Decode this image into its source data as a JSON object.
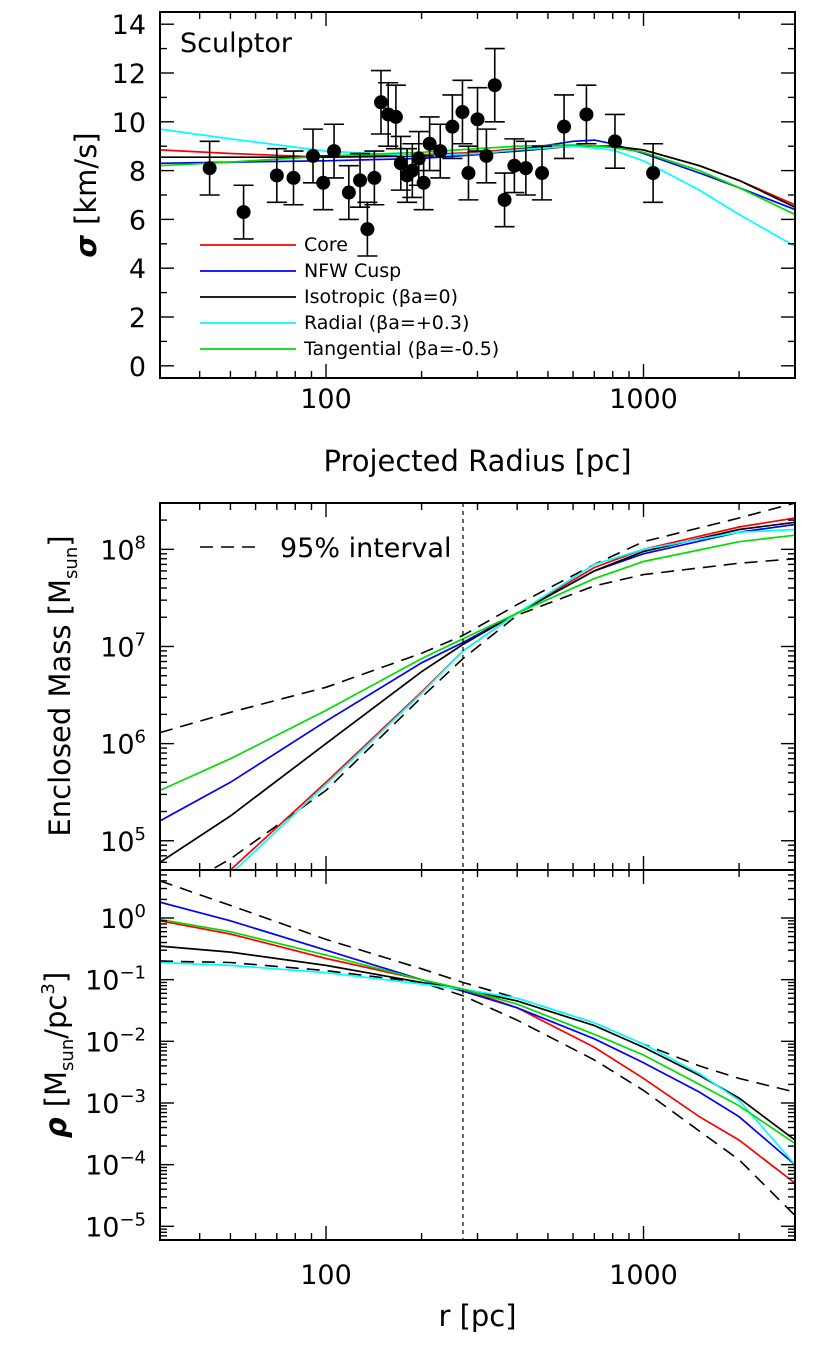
{
  "figure": {
    "panel_sigma": {
      "annotation": "Sculptor",
      "ylabel_symbol": "σ",
      "ylabel_unit": "[km/s]",
      "xlabel": "Projected Radius [pc]",
      "yticks": [
        "0",
        "2",
        "4",
        "6",
        "8",
        "10",
        "12",
        "14"
      ],
      "xticks": [
        "100",
        "1000"
      ]
    },
    "panel_mass": {
      "ylabel": "Enclosed Mass [Msun]",
      "yticks": [
        "10^5",
        "10^6",
        "10^7",
        "10^8"
      ],
      "band_label": "95% interval"
    },
    "panel_rho": {
      "ylabel": "ρ [Msun/pc^3]",
      "yticks": [
        "10^0",
        "10^-1",
        "10^-2",
        "10^-3",
        "10^-4",
        "10^-5"
      ],
      "xlabel": "r [pc]",
      "xticks": [
        "100",
        "1000"
      ]
    },
    "legend": [
      {
        "key": "core",
        "label": "Core",
        "color": "#ff0000"
      },
      {
        "key": "nfw",
        "label": "NFW Cusp",
        "color": "#0000ff"
      },
      {
        "key": "iso",
        "label": "Isotropic (βa=0)",
        "color": "#000000"
      },
      {
        "key": "rad",
        "label": "Radial (βa=+0.3)",
        "color": "#00ffff"
      },
      {
        "key": "tan",
        "label": "Tangential (βa=-0.5)",
        "color": "#00dd00"
      }
    ]
  },
  "chart_data": [
    {
      "type": "scatter",
      "title": "Sculptor",
      "xlabel": "Projected Radius [pc]",
      "ylabel": "σ [km/s]",
      "xscale": "log",
      "xlim": [
        30,
        3000
      ],
      "ylim": [
        -0.5,
        14.5
      ],
      "points": [
        {
          "x": 43,
          "y": 8.1,
          "err": 1.1
        },
        {
          "x": 55,
          "y": 6.3,
          "err": 1.1
        },
        {
          "x": 70,
          "y": 7.8,
          "err": 1.1
        },
        {
          "x": 79,
          "y": 7.7,
          "err": 1.1
        },
        {
          "x": 91,
          "y": 8.6,
          "err": 1.1
        },
        {
          "x": 98,
          "y": 7.5,
          "err": 1.1
        },
        {
          "x": 106,
          "y": 8.8,
          "err": 1.1
        },
        {
          "x": 118,
          "y": 7.1,
          "err": 1.1
        },
        {
          "x": 128,
          "y": 7.6,
          "err": 1.1
        },
        {
          "x": 135,
          "y": 5.6,
          "err": 1.1
        },
        {
          "x": 142,
          "y": 7.7,
          "err": 1.1
        },
        {
          "x": 149,
          "y": 10.8,
          "err": 1.3
        },
        {
          "x": 157,
          "y": 10.3,
          "err": 1.3
        },
        {
          "x": 166,
          "y": 10.2,
          "err": 1.3
        },
        {
          "x": 172,
          "y": 8.3,
          "err": 1.1
        },
        {
          "x": 180,
          "y": 7.8,
          "err": 1.1
        },
        {
          "x": 187,
          "y": 8.0,
          "err": 1.1
        },
        {
          "x": 196,
          "y": 8.5,
          "err": 1.1
        },
        {
          "x": 203,
          "y": 7.5,
          "err": 1.1
        },
        {
          "x": 212,
          "y": 9.1,
          "err": 1.1
        },
        {
          "x": 229,
          "y": 8.8,
          "err": 1.1
        },
        {
          "x": 250,
          "y": 9.8,
          "err": 1.3
        },
        {
          "x": 269,
          "y": 10.4,
          "err": 1.3
        },
        {
          "x": 281,
          "y": 7.9,
          "err": 1.1
        },
        {
          "x": 300,
          "y": 10.1,
          "err": 1.3
        },
        {
          "x": 320,
          "y": 8.6,
          "err": 1.1
        },
        {
          "x": 340,
          "y": 11.5,
          "err": 1.5
        },
        {
          "x": 365,
          "y": 6.8,
          "err": 1.1
        },
        {
          "x": 392,
          "y": 8.2,
          "err": 1.1
        },
        {
          "x": 426,
          "y": 8.1,
          "err": 1.1
        },
        {
          "x": 479,
          "y": 7.9,
          "err": 1.1
        },
        {
          "x": 562,
          "y": 9.8,
          "err": 1.3
        },
        {
          "x": 661,
          "y": 10.3,
          "err": 1.2
        },
        {
          "x": 813,
          "y": 9.2,
          "err": 1.1
        },
        {
          "x": 1072,
          "y": 7.9,
          "err": 1.2
        }
      ],
      "series": [
        {
          "name": "Core",
          "color": "#ff0000",
          "x": [
            30,
            50,
            100,
            200,
            300,
            400,
            600,
            800,
            1000,
            1500,
            2000,
            3000
          ],
          "y": [
            8.85,
            8.7,
            8.55,
            8.65,
            8.75,
            8.9,
            9.0,
            9.0,
            8.85,
            8.2,
            7.6,
            6.6
          ]
        },
        {
          "name": "NFW Cusp",
          "color": "#0000ff",
          "x": [
            30,
            50,
            100,
            200,
            300,
            400,
            600,
            700,
            800,
            1000,
            1500,
            2000,
            3000
          ],
          "y": [
            8.3,
            8.35,
            8.4,
            8.5,
            8.65,
            8.85,
            9.2,
            9.25,
            9.1,
            8.7,
            7.9,
            7.3,
            6.4
          ]
        },
        {
          "name": "Isotropic (βa=0)",
          "color": "#000000",
          "x": [
            30,
            50,
            100,
            200,
            300,
            400,
            600,
            800,
            1000,
            1500,
            2000,
            3000
          ],
          "y": [
            8.55,
            8.55,
            8.55,
            8.6,
            8.7,
            8.8,
            9.0,
            9.0,
            8.85,
            8.2,
            7.6,
            6.5
          ]
        },
        {
          "name": "Radial (βa=+0.3)",
          "color": "#00ffff",
          "x": [
            30,
            50,
            100,
            200,
            300,
            400,
            600,
            800,
            1000,
            1500,
            2000,
            3000
          ],
          "y": [
            9.7,
            9.3,
            8.8,
            8.6,
            8.7,
            8.85,
            9.0,
            8.85,
            8.4,
            7.2,
            6.2,
            4.9
          ]
        },
        {
          "name": "Tangential (βa=-0.5)",
          "color": "#00dd00",
          "x": [
            30,
            50,
            100,
            200,
            300,
            400,
            600,
            800,
            1000,
            1500,
            2000,
            3000
          ],
          "y": [
            8.2,
            8.35,
            8.6,
            8.75,
            8.9,
            9.0,
            9.05,
            8.95,
            8.75,
            8.0,
            7.3,
            6.2
          ]
        }
      ]
    },
    {
      "type": "line",
      "ylabel": "Enclosed Mass [Msun]",
      "xscale": "log",
      "yscale": "log",
      "xlim": [
        30,
        3000
      ],
      "ylim": [
        50000,
        300000000
      ],
      "vline": 270,
      "band_label": "95% interval",
      "band": {
        "x": [
          30,
          50,
          100,
          200,
          270,
          400,
          700,
          1000,
          2000,
          3000
        ],
        "lower": [
          25000,
          65000,
          330000,
          3000000,
          7500000,
          21000000,
          42000000,
          55000000,
          72000000,
          80000000
        ],
        "upper": [
          1300000,
          2100000,
          3800000,
          8500000,
          13000000,
          27000000,
          70000000,
          120000000,
          210000000,
          300000000
        ]
      },
      "series": [
        {
          "name": "Core",
          "color": "#ff0000",
          "x": [
            30,
            50,
            100,
            200,
            270,
            400,
            700,
            1000,
            2000,
            3000
          ],
          "y": [
            12000,
            50000,
            400000,
            3400000,
            9000000,
            22000000,
            65000000,
            100000000,
            170000000,
            210000000
          ]
        },
        {
          "name": "NFW Cusp",
          "color": "#0000ff",
          "x": [
            30,
            50,
            100,
            200,
            270,
            400,
            700,
            1000,
            2000,
            3000
          ],
          "y": [
            160000,
            400000,
            1700000,
            6800000,
            11000000,
            22000000,
            60000000,
            90000000,
            150000000,
            180000000
          ]
        },
        {
          "name": "Isotropic (βa=0)",
          "color": "#000000",
          "x": [
            30,
            50,
            100,
            200,
            270,
            400,
            700,
            1000,
            2000,
            3000
          ],
          "y": [
            60000,
            180000,
            1000000,
            5500000,
            10500000,
            22000000,
            60000000,
            95000000,
            160000000,
            190000000
          ]
        },
        {
          "name": "Radial (βa=+0.3)",
          "color": "#00ffff",
          "x": [
            30,
            50,
            100,
            200,
            270,
            400,
            700,
            1000,
            2000,
            3000
          ],
          "y": [
            10000,
            45000,
            380000,
            3300000,
            9000000,
            22000000,
            70000000,
            100000000,
            150000000,
            160000000
          ]
        },
        {
          "name": "Tangential (βa=-0.5)",
          "color": "#00dd00",
          "x": [
            30,
            50,
            100,
            200,
            270,
            400,
            700,
            1000,
            2000,
            3000
          ],
          "y": [
            330000,
            700000,
            2200000,
            7500000,
            12000000,
            22000000,
            50000000,
            75000000,
            120000000,
            140000000
          ]
        }
      ]
    },
    {
      "type": "line",
      "xlabel": "r [pc]",
      "ylabel": "ρ [Msun/pc^3]",
      "xscale": "log",
      "yscale": "log",
      "xlim": [
        30,
        3000
      ],
      "ylim": [
        6e-06,
        6
      ],
      "vline": 270,
      "band": {
        "x": [
          30,
          50,
          100,
          200,
          270,
          400,
          700,
          1000,
          1500,
          2000,
          3000
        ],
        "lower": [
          0.2,
          0.19,
          0.14,
          0.09,
          0.055,
          0.022,
          0.005,
          0.0016,
          0.00035,
          0.00012,
          1.5e-05
        ],
        "upper": [
          4.0,
          1.6,
          0.45,
          0.15,
          0.09,
          0.05,
          0.02,
          0.009,
          0.004,
          0.0025,
          0.0015
        ]
      },
      "series": [
        {
          "name": "Core",
          "color": "#ff0000",
          "x": [
            30,
            50,
            100,
            200,
            270,
            400,
            700,
            1000,
            1500,
            2000,
            3000
          ],
          "y": [
            0.9,
            0.55,
            0.22,
            0.1,
            0.07,
            0.035,
            0.008,
            0.0025,
            0.0006,
            0.00025,
            5e-05
          ]
        },
        {
          "name": "NFW Cusp",
          "color": "#0000ff",
          "x": [
            30,
            50,
            100,
            200,
            270,
            400,
            700,
            1000,
            1500,
            2000,
            3000
          ],
          "y": [
            1.8,
            0.9,
            0.3,
            0.1,
            0.065,
            0.035,
            0.011,
            0.0045,
            0.0015,
            0.0006,
            0.0001
          ]
        },
        {
          "name": "Isotropic (βa=0)",
          "color": "#000000",
          "x": [
            30,
            50,
            100,
            200,
            270,
            400,
            700,
            1000,
            1500,
            2000,
            3000
          ],
          "y": [
            0.35,
            0.28,
            0.17,
            0.09,
            0.07,
            0.045,
            0.018,
            0.008,
            0.0028,
            0.0012,
            0.00025
          ]
        },
        {
          "name": "Radial (βa=+0.3)",
          "color": "#00ffff",
          "x": [
            30,
            50,
            100,
            200,
            270,
            400,
            700,
            1000,
            1500,
            2000,
            3000
          ],
          "y": [
            0.19,
            0.17,
            0.13,
            0.085,
            0.07,
            0.05,
            0.02,
            0.009,
            0.003,
            0.0011,
            0.0001
          ]
        },
        {
          "name": "Tangential (βa=-0.5)",
          "color": "#00dd00",
          "x": [
            30,
            50,
            100,
            200,
            270,
            400,
            700,
            1000,
            1500,
            2000,
            3000
          ],
          "y": [
            0.95,
            0.6,
            0.25,
            0.1,
            0.07,
            0.04,
            0.013,
            0.006,
            0.002,
            0.0009,
            0.00022
          ]
        }
      ]
    }
  ]
}
